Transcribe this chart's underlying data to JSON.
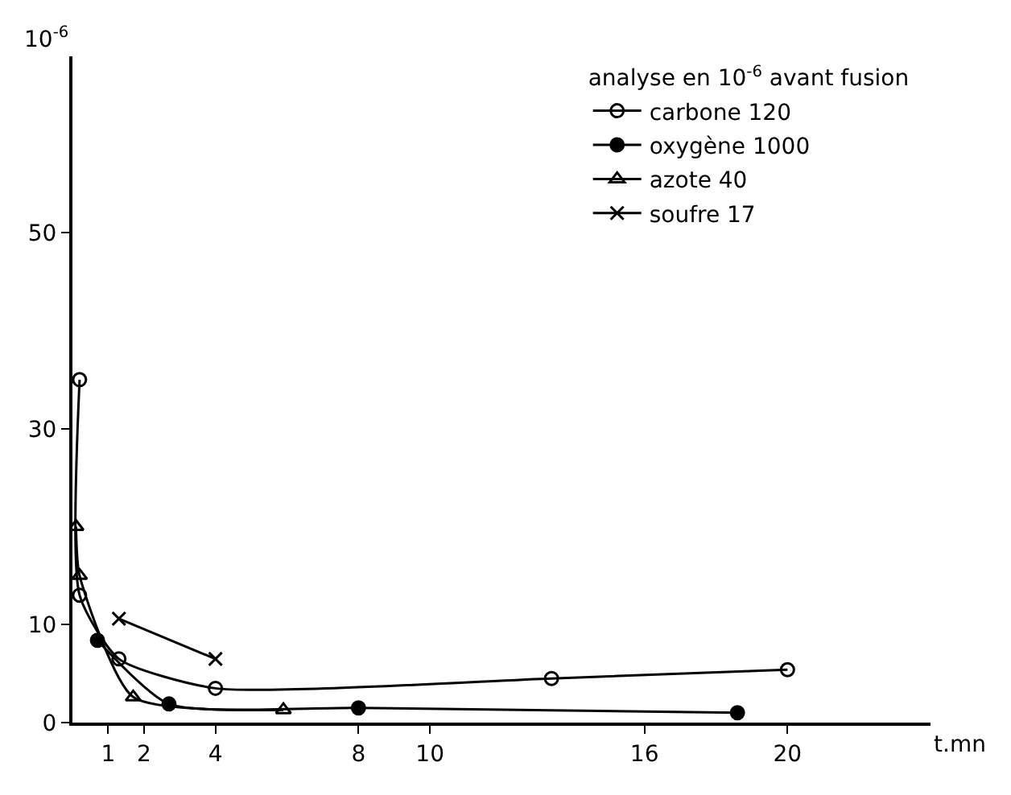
{
  "chart_data": {
    "type": "line",
    "xlabel": "t.mn",
    "ylabel": "10$^{-6}$",
    "legend_title": "analyse en 10$^{-6}$ avant fusion",
    "legend": "top right",
    "line_style": "solid",
    "xlim": [
      0,
      24
    ],
    "xticks": [
      1,
      2,
      4,
      8,
      10,
      16,
      20
    ],
    "ylim": [
      0,
      68
    ],
    "yticks": [
      0,
      10,
      30,
      50
    ],
    "series": [
      {
        "name": "carbone 120",
        "color": "#000000",
        "marker": "circle-open",
        "x": [
          0.2,
          0.2,
          1.3,
          4,
          13.4,
          20
        ],
        "values": [
          35,
          13,
          6.5,
          3.5,
          4.5,
          5.4
        ]
      },
      {
        "name": "oxygène 1000",
        "color": "#000000",
        "marker": "circle",
        "x": [
          0.7,
          2.7,
          8,
          18.6
        ],
        "values": [
          8.4,
          1.9,
          1.5,
          1.0
        ]
      },
      {
        "name": "azote 40",
        "color": "#000000",
        "marker": "triangle-open",
        "x": [
          0.1,
          0.2,
          1.7,
          5.9
        ],
        "values": [
          20,
          15,
          2.6,
          1.3
        ]
      },
      {
        "name": "soufre 17",
        "color": "#000000",
        "marker": "cross",
        "x": [
          1.3,
          4
        ],
        "values": [
          10.6,
          6.5
        ]
      }
    ]
  }
}
